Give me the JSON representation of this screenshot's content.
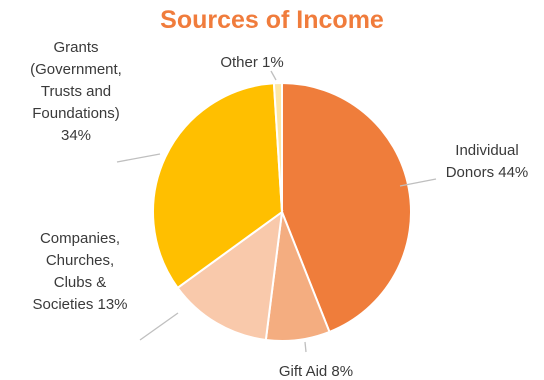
{
  "chart_data": {
    "type": "pie",
    "title": "Sources of Income",
    "slices": [
      {
        "label": "Individual Donors",
        "value": 44,
        "color": "#ef7d3b",
        "text_lines": [
          "Individual",
          "Donors 44%"
        ]
      },
      {
        "label": "Gift Aid",
        "value": 8,
        "color": "#f4ad80",
        "text_lines": [
          "Gift Aid 8%"
        ]
      },
      {
        "label": "Companies, Churches, Clubs & Societies",
        "value": 13,
        "color": "#f9c9ab",
        "text_lines": [
          "Companies,",
          "Churches,",
          "Clubs &",
          "Societies 13%"
        ]
      },
      {
        "label": "Grants (Government, Trusts and Foundations)",
        "value": 34,
        "color": "#ffbf00",
        "text_lines": [
          "Grants",
          "(Government,",
          "Trusts and",
          "Foundations)",
          "34%"
        ]
      },
      {
        "label": "Other",
        "value": 1,
        "color": "#fde7a6",
        "text_lines": [
          "Other 1%"
        ]
      }
    ]
  }
}
